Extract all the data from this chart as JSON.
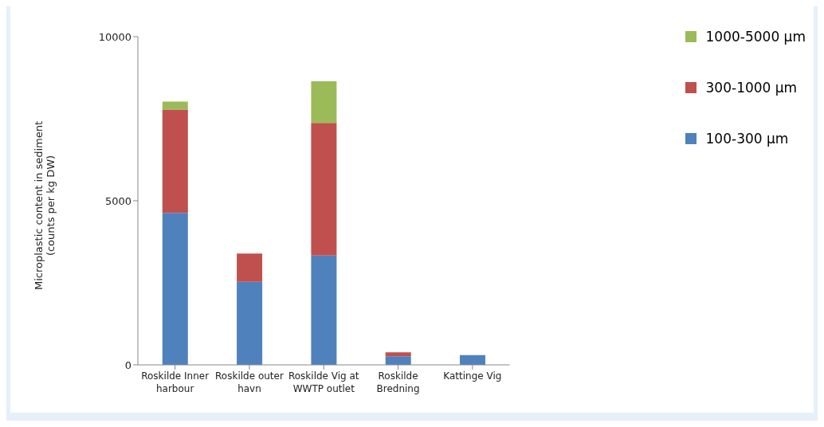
{
  "chart_data": {
    "type": "bar",
    "ylabel": "Microplastic content in sediment (counts per kg DW)",
    "categories": [
      "Roskilde Inner harbour",
      "Roskilde outer havn",
      "Roskilde Vig at WWTP outlet",
      "Roskilde Bredning",
      "Kattinge Vig"
    ],
    "series": [
      {
        "name": "100-300 µm",
        "color": "#4f81bd",
        "values": [
          4630,
          2530,
          3330,
          260,
          300
        ]
      },
      {
        "name": "300-1000 µm",
        "color": "#c0504d",
        "values": [
          3150,
          860,
          4040,
          120,
          null
        ]
      },
      {
        "name": "1000-5000 µm",
        "color": "#9bbb59",
        "values": [
          240,
          null,
          1270,
          null,
          null
        ]
      }
    ],
    "stacked": true,
    "ylim": [
      0,
      10000
    ],
    "yticks": [
      0,
      5000,
      10000
    ],
    "grid": false,
    "legend": "top right"
  }
}
